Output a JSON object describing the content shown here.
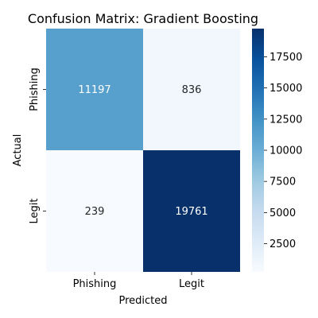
{
  "chart_data": {
    "type": "heatmap",
    "title": "Confusion Matrix: Gradient Boosting",
    "xlabel": "Predicted",
    "ylabel": "Actual",
    "x_categories": [
      "Phishing",
      "Legit"
    ],
    "y_categories": [
      "Phishing",
      "Legit"
    ],
    "values": [
      [
        11197,
        836
      ],
      [
        239,
        19761
      ]
    ],
    "colormap": "Blues",
    "colorbar": {
      "vmin": 239,
      "vmax": 19761,
      "ticks": [
        2500,
        5000,
        7500,
        10000,
        12500,
        15000,
        17500
      ]
    },
    "annotation_dark_color": "#262626",
    "annotation_light_color": "#ffffff"
  }
}
